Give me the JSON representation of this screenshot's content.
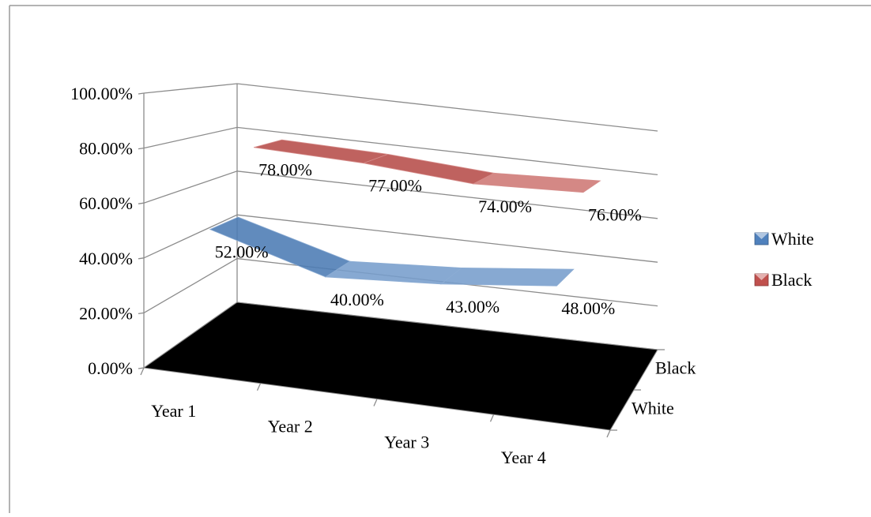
{
  "chart_data": {
    "type": "line",
    "style": "3d",
    "categories": [
      "Year 1",
      "Year 2",
      "Year 3",
      "Year 4"
    ],
    "series": [
      {
        "name": "White",
        "values": [
          52.0,
          40.0,
          43.0,
          48.0
        ],
        "labels": [
          "52.00%",
          "40.00%",
          "43.00%",
          "48.00%"
        ],
        "color": "#4f81bd"
      },
      {
        "name": "Black",
        "values": [
          78.0,
          77.0,
          74.0,
          76.0
        ],
        "labels": [
          "78.00%",
          "77.00%",
          "74.00%",
          "76.00%"
        ],
        "color": "#c0504d"
      }
    ],
    "depth_labels": [
      "Black",
      "White"
    ],
    "y_ticks": [
      "0.00%",
      "20.00%",
      "40.00%",
      "60.00%",
      "80.00%",
      "100.00%"
    ],
    "ylim": [
      0,
      100
    ],
    "grid": true,
    "legend": "right",
    "floor_color": "#000000"
  }
}
